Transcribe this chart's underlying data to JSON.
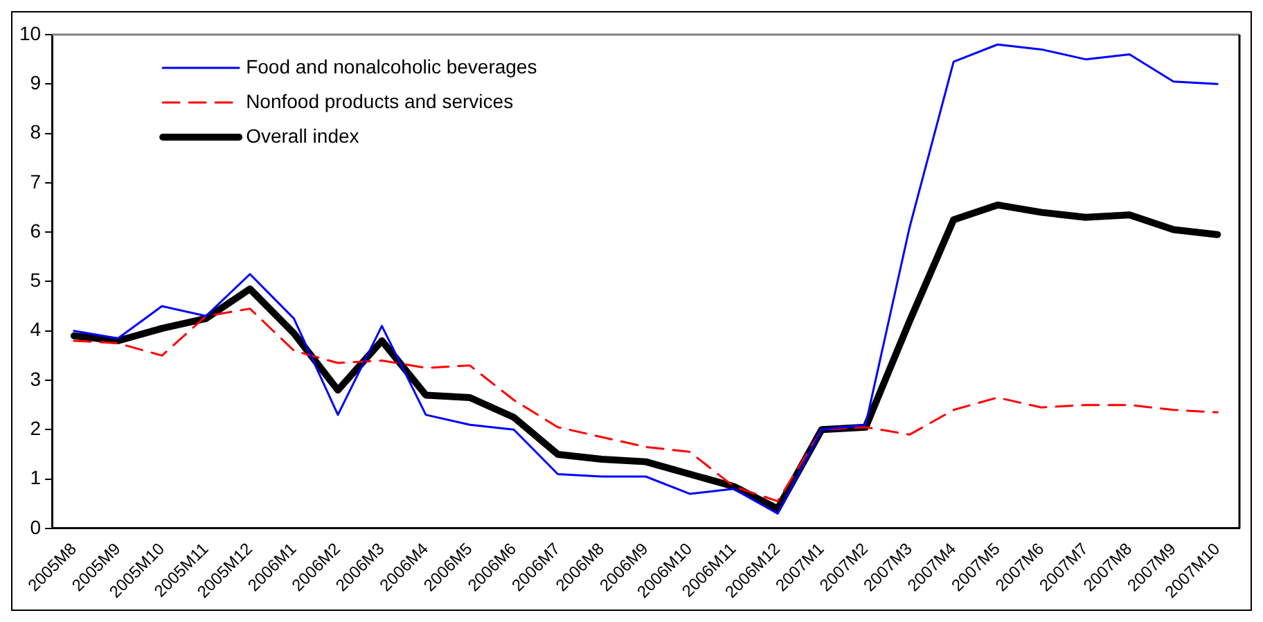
{
  "chart_data": {
    "type": "line",
    "categories": [
      "2005M8",
      "2005M9",
      "2005M10",
      "2005M11",
      "2005M12",
      "2006M1",
      "2006M2",
      "2006M3",
      "2006M4",
      "2006M5",
      "2006M6",
      "2006M7",
      "2006M8",
      "2006M9",
      "2006M10",
      "2006M11",
      "2006M12",
      "2007M1",
      "2007M2",
      "2007M3",
      "2007M4",
      "2007M5",
      "2007M6",
      "2007M7",
      "2007M8",
      "2007M9",
      "2007M10"
    ],
    "series": [
      {
        "name": "Food and nonalcoholic beverages",
        "color": "#0000ff",
        "line_style": "solid",
        "values": [
          4.0,
          3.85,
          4.5,
          4.3,
          5.15,
          4.25,
          2.3,
          4.1,
          2.3,
          2.1,
          2.0,
          1.1,
          1.05,
          1.05,
          0.7,
          0.8,
          0.3,
          2.0,
          2.1,
          6.1,
          9.45,
          9.8,
          9.7,
          9.5,
          9.6,
          9.05,
          9.0
        ]
      },
      {
        "name": "Nonfood products and services",
        "color": "#ff0000",
        "line_style": "dashed",
        "values": [
          3.8,
          3.75,
          3.5,
          4.3,
          4.45,
          3.6,
          3.35,
          3.4,
          3.25,
          3.3,
          2.6,
          2.05,
          1.85,
          1.65,
          1.55,
          0.85,
          0.55,
          2.0,
          2.05,
          1.9,
          2.4,
          2.65,
          2.45,
          2.5,
          2.5,
          2.4,
          2.35
        ]
      },
      {
        "name": "Overall index",
        "color": "#000000",
        "line_style": "solid",
        "values": [
          3.9,
          3.8,
          4.05,
          4.25,
          4.85,
          3.95,
          2.8,
          3.8,
          2.7,
          2.65,
          2.25,
          1.5,
          1.4,
          1.35,
          1.1,
          0.85,
          0.4,
          2.0,
          2.05,
          4.2,
          6.25,
          6.55,
          6.4,
          6.3,
          6.35,
          6.05,
          5.95
        ]
      }
    ],
    "ylim": [
      0,
      10
    ],
    "yticks": [
      0,
      1,
      2,
      3,
      4,
      5,
      6,
      7,
      8,
      9,
      10
    ],
    "grid": false,
    "legend": "top left",
    "marker": "none"
  }
}
